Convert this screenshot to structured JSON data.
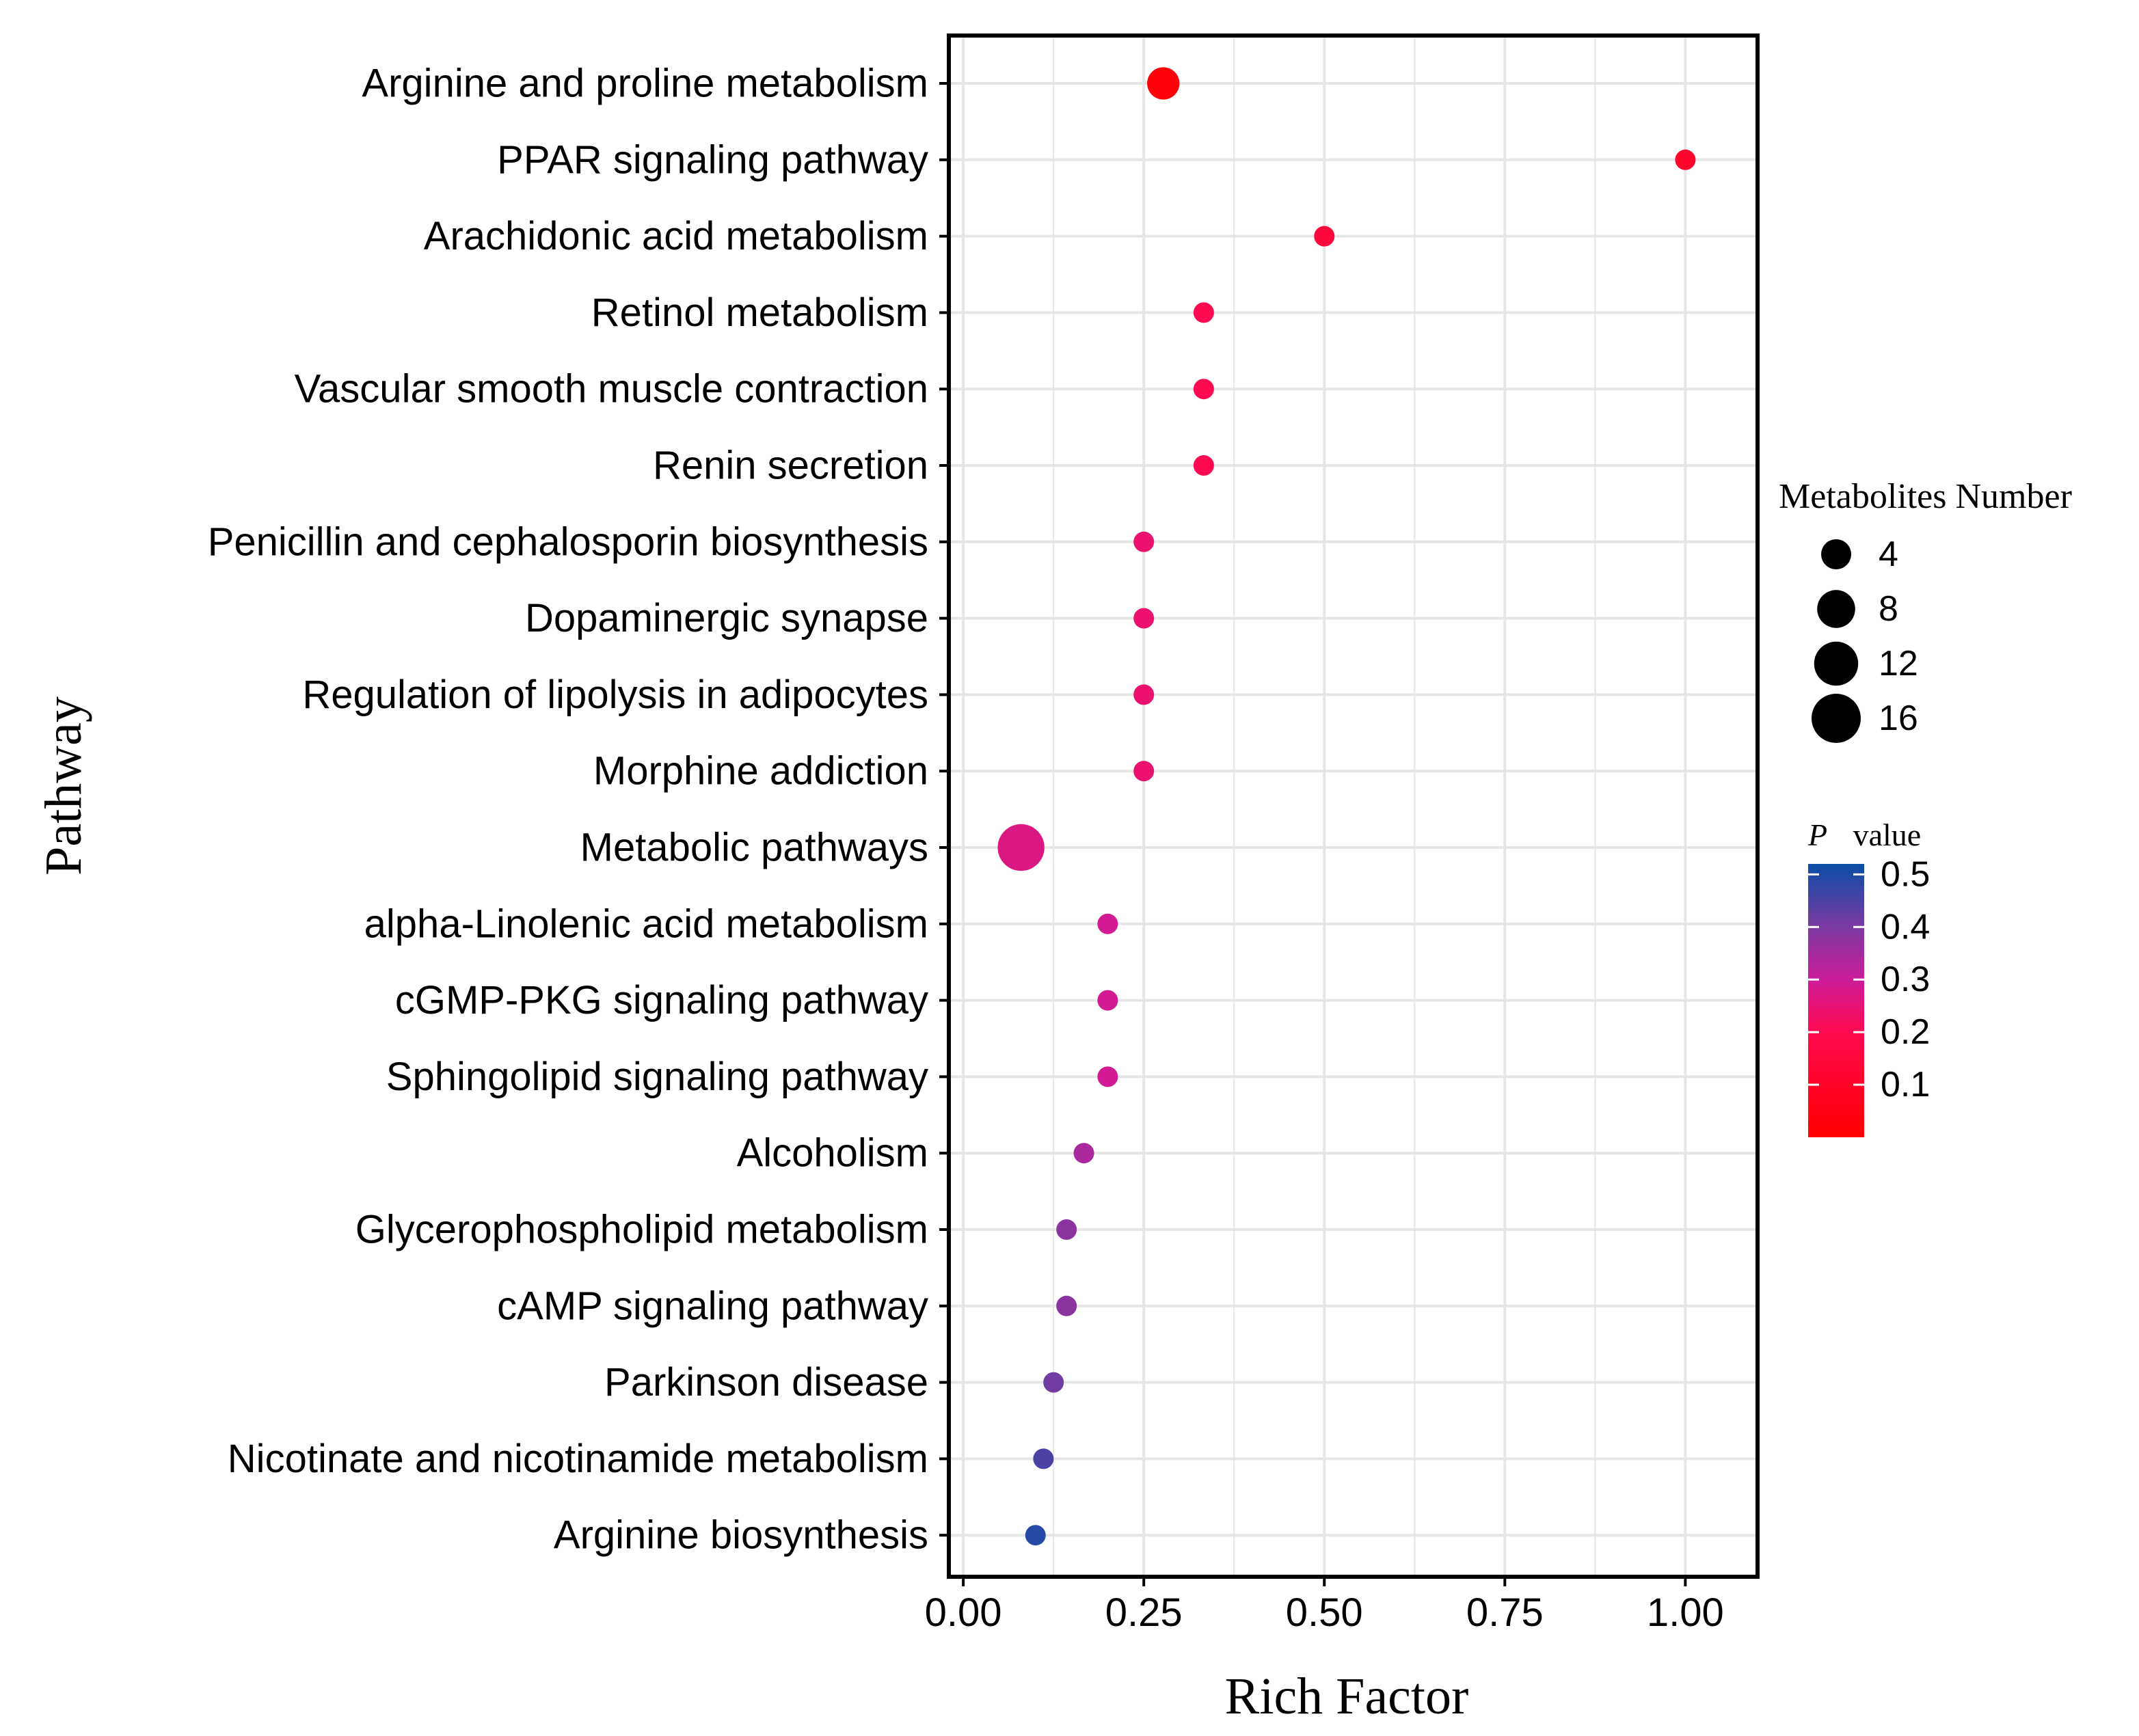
{
  "chart_data": {
    "type": "scatter",
    "subtype": "bubble",
    "xlabel": "Rich Factor",
    "ylabel": "Pathway",
    "xlim": [
      -0.02,
      1.1
    ],
    "x_ticks": [
      0.0,
      0.25,
      0.5,
      0.75,
      1.0
    ],
    "x_tick_labels": [
      "0.00",
      "0.25",
      "0.50",
      "0.75",
      "1.00"
    ],
    "grid": true,
    "pathways": [
      {
        "name": "Arginine and proline metabolism",
        "rich_factor": 0.277,
        "metabolites": 5,
        "p_value": 0.02
      },
      {
        "name": "PPAR signaling pathway",
        "rich_factor": 1.0,
        "metabolites": 1,
        "p_value": 0.11
      },
      {
        "name": "Arachidonic acid metabolism",
        "rich_factor": 0.5,
        "metabolites": 1,
        "p_value": 0.15
      },
      {
        "name": "Retinol metabolism",
        "rich_factor": 0.333,
        "metabolites": 1,
        "p_value": 0.2
      },
      {
        "name": "Vascular smooth muscle contraction",
        "rich_factor": 0.333,
        "metabolites": 1,
        "p_value": 0.2
      },
      {
        "name": "Renin secretion",
        "rich_factor": 0.333,
        "metabolites": 1,
        "p_value": 0.2
      },
      {
        "name": "Penicillin and cephalosporin biosynthesis",
        "rich_factor": 0.25,
        "metabolites": 1,
        "p_value": 0.24
      },
      {
        "name": "Dopaminergic synapse",
        "rich_factor": 0.25,
        "metabolites": 1,
        "p_value": 0.24
      },
      {
        "name": "Regulation of lipolysis in adipocytes",
        "rich_factor": 0.25,
        "metabolites": 1,
        "p_value": 0.24
      },
      {
        "name": "Morphine addiction",
        "rich_factor": 0.25,
        "metabolites": 1,
        "p_value": 0.24
      },
      {
        "name": "Metabolic pathways",
        "rich_factor": 0.08,
        "metabolites": 14,
        "p_value": 0.27
      },
      {
        "name": "alpha-Linolenic acid metabolism",
        "rich_factor": 0.2,
        "metabolites": 1,
        "p_value": 0.29
      },
      {
        "name": "cGMP-PKG signaling pathway",
        "rich_factor": 0.2,
        "metabolites": 1,
        "p_value": 0.29
      },
      {
        "name": "Sphingolipid signaling pathway",
        "rich_factor": 0.2,
        "metabolites": 1,
        "p_value": 0.29
      },
      {
        "name": "Alcoholism",
        "rich_factor": 0.167,
        "metabolites": 1,
        "p_value": 0.34
      },
      {
        "name": "Glycerophospholipid metabolism",
        "rich_factor": 0.143,
        "metabolites": 1,
        "p_value": 0.38
      },
      {
        "name": "cAMP signaling pathway",
        "rich_factor": 0.143,
        "metabolites": 1,
        "p_value": 0.38
      },
      {
        "name": "Parkinson disease",
        "rich_factor": 0.125,
        "metabolites": 1,
        "p_value": 0.41
      },
      {
        "name": "Nicotinate and nicotinamide metabolism",
        "rich_factor": 0.111,
        "metabolites": 1,
        "p_value": 0.45
      },
      {
        "name": "Arginine biosynthesis",
        "rich_factor": 0.1,
        "metabolites": 1,
        "p_value": 0.49
      }
    ],
    "size_legend": {
      "title": "Metabolites Number",
      "values": [
        4,
        8,
        12,
        16
      ],
      "labels": [
        "4",
        "8",
        "12",
        "16"
      ]
    },
    "color_legend": {
      "title_italic": "P",
      "title_rest": "value",
      "range": [
        0.0,
        0.52
      ],
      "ticks": [
        0.1,
        0.2,
        0.3,
        0.4,
        0.5
      ],
      "tick_labels": [
        "0.1",
        "0.2",
        "0.3",
        "0.4",
        "0.5"
      ],
      "colors": [
        {
          "stop": 0.0,
          "color": "#ff0000"
        },
        {
          "stop": 0.2,
          "color": "#ff0a50"
        },
        {
          "stop": 0.3,
          "color": "#cc1c9a"
        },
        {
          "stop": 0.4,
          "color": "#7b3aa2"
        },
        {
          "stop": 0.52,
          "color": "#0a4ea6"
        }
      ]
    },
    "colors": {
      "grid": "#e6e6e6",
      "axis": "#000000",
      "panel_border": "#000000",
      "legend_point": "#000000",
      "text": "#000000"
    }
  }
}
